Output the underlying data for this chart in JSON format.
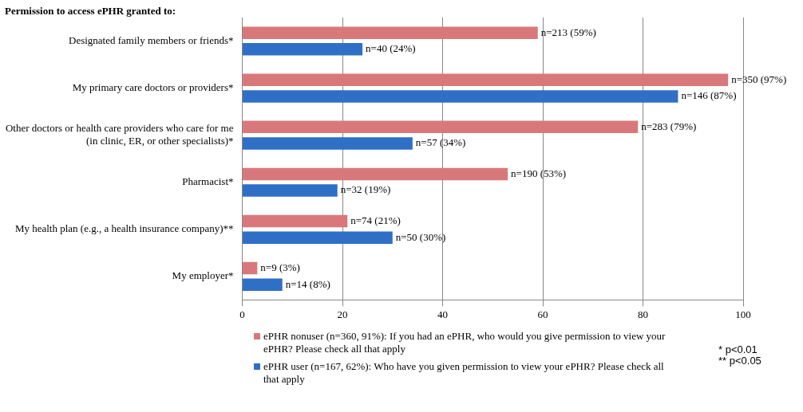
{
  "chart_data": {
    "type": "bar",
    "orientation": "horizontal",
    "title": "Permission to access ePHR granted to:",
    "categories": [
      "Designated family members or friends*",
      "My primary care doctors or providers*",
      "Other doctors or health care providers who care for me (in clinic, ER, or other specialists)*",
      "Pharmacist*",
      "My health plan (e.g., a health insurance company)**",
      "My employer*"
    ],
    "series": [
      {
        "name": "ePHR nonuser (n=360, 91%):  If you had an ePHR, who would you give permission to view your ePHR? Please check all that apply",
        "color": "#d9787a",
        "values": [
          59,
          97,
          79,
          53,
          21,
          3
        ],
        "value_labels": [
          "n=213 (59%)",
          "n=350 (97%)",
          "n=283 (79%)",
          "n=190 (53%)",
          "n=74 (21%)",
          "n=9 (3%)"
        ]
      },
      {
        "name": "ePHR user (n=167, 62%): Who have you given permission to view your ePHR? Please check all that apply",
        "color": "#2f6fc6",
        "values": [
          24,
          87,
          34,
          19,
          30,
          8
        ],
        "value_labels": [
          "n=40 (24%)",
          "n=146 (87%)",
          "n=57 (34%)",
          "n=32 (19%)",
          "n=50 (30%)",
          "n=14 (8%)"
        ]
      }
    ],
    "xlim": [
      0,
      100
    ],
    "xticks": [
      0,
      20,
      40,
      60,
      80,
      100
    ],
    "grid": "x",
    "legend": "bottom",
    "annotations": [
      "* p<0.01",
      "** p<0.05"
    ]
  }
}
